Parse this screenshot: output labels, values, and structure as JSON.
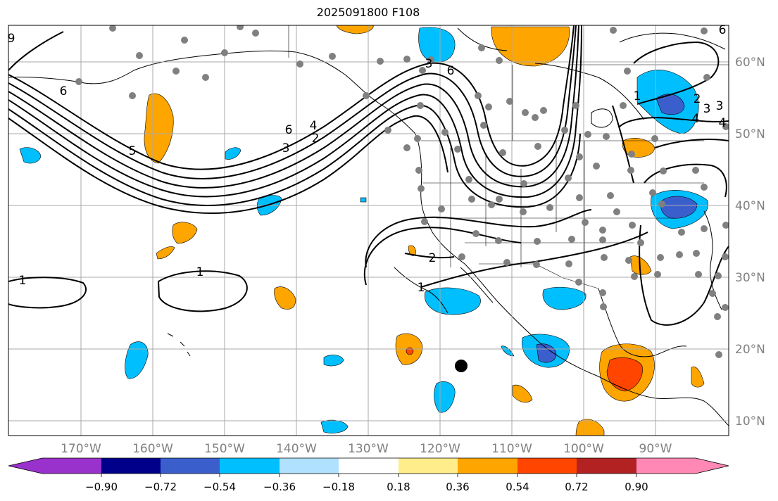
{
  "title": "2025091800 F108",
  "lon_labels": [
    "170°W",
    "160°W",
    "150°W",
    "140°W",
    "130°W",
    "120°W",
    "110°W",
    "100°W",
    "90°W"
  ],
  "lat_labels": [
    "60°N",
    "50°N",
    "40°N",
    "30°N",
    "20°N",
    "10°N"
  ],
  "contour_labels": [
    "1",
    "1",
    "1",
    "2",
    "2",
    "3",
    "3",
    "4",
    "5",
    "6",
    "6",
    "6",
    "3",
    "6",
    "4",
    "2",
    "1",
    "3",
    "4",
    "9"
  ],
  "colorbar": {
    "colors": [
      "#9932cc",
      "#00008b",
      "#3a5fcd",
      "#00bfff",
      "#b0e2ff",
      "#ffffff",
      "#ffec8b",
      "#ffa500",
      "#ff4500",
      "#b22222",
      "#ff89b4"
    ],
    "tick_labels": [
      "−0.90",
      "−0.72",
      "−0.54",
      "−0.36",
      "−0.18",
      "0.18",
      "0.36",
      "0.54",
      "0.72",
      "0.90"
    ]
  },
  "colors": {
    "land_outline": "#000000",
    "gridline": "#a9a9a9",
    "axis_label": "#808080",
    "station_marker": "#808080",
    "highlight_marker": "#000000"
  }
}
